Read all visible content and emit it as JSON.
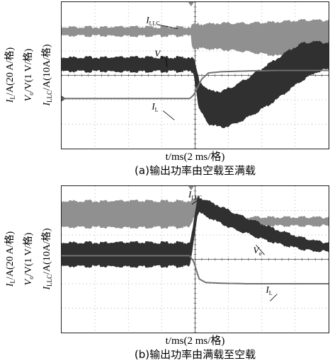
{
  "chart_data": [
    {
      "type": "line",
      "title": "",
      "caption": "(a)输出功率由空载至满载",
      "xlabel": "t/ms(2 ms/格)",
      "ylabel_lines": [
        "I_L/A(20 A/格)",
        "V_o/V(1 V/格)",
        "I_LLC/A(10A/格)"
      ],
      "x_divisions": 8,
      "y_divisions": 6,
      "xlim": [
        0,
        20
      ],
      "event_time_ms": 9.7,
      "series": [
        {
          "name": "I_LLC",
          "label_main": "I",
          "label_sub": "LLC",
          "color": "#909090",
          "x": [
            0,
            9.7,
            9.8,
            12,
            14,
            16,
            18,
            20
          ],
          "center": [
            1.2,
            1.2,
            1.4,
            1.4,
            1.45,
            1.5,
            1.5,
            1.5
          ],
          "band": [
            0.28,
            0.28,
            0.9,
            1.0,
            1.1,
            1.3,
            1.45,
            1.45
          ]
        },
        {
          "name": "V_o",
          "label_main": "V",
          "label_sub": "o",
          "color": "#303030",
          "x": [
            0,
            9.6,
            9.9,
            10.3,
            11,
            12,
            13,
            14,
            15,
            16,
            17,
            18,
            19,
            20
          ],
          "center": [
            2.55,
            2.55,
            2.6,
            3.8,
            4.3,
            4.4,
            4.2,
            3.9,
            3.55,
            3.2,
            2.8,
            2.45,
            2.25,
            2.2
          ],
          "band": [
            0.5,
            0.5,
            0.5,
            1.1,
            1.3,
            1.4,
            1.5,
            1.55,
            1.6,
            1.6,
            1.55,
            1.45,
            1.2,
            1.0
          ]
        },
        {
          "name": "I_L",
          "label_main": "I",
          "label_sub": "L",
          "color": "#707070",
          "x": [
            0,
            9.6,
            9.9,
            10.5,
            11,
            12,
            14,
            16,
            18,
            20
          ],
          "center": [
            3.95,
            3.95,
            3.8,
            3.15,
            2.9,
            2.85,
            2.82,
            2.8,
            2.8,
            2.8
          ],
          "band": [
            0.05,
            0.05,
            0.05,
            0.05,
            0.05,
            0.05,
            0.05,
            0.05,
            0.05,
            0.05
          ]
        }
      ]
    },
    {
      "type": "line",
      "title": "",
      "caption": "(b)输出功率由满载至空载",
      "xlabel": "t/ms(2 ms/格)",
      "ylabel_lines": [
        "I_L/A(20 A/格)",
        "V_o/V(1 V/格)",
        "I_LLC/A(10A/格)"
      ],
      "x_divisions": 8,
      "y_divisions": 6,
      "xlim": [
        0,
        20
      ],
      "event_time_ms": 9.7,
      "series": [
        {
          "name": "I_LLC",
          "label_main": "I",
          "label_sub": "LLC",
          "color": "#909090",
          "x": [
            0,
            9.6,
            9.9,
            10.3,
            11,
            12,
            13,
            20
          ],
          "center": [
            1.15,
            1.15,
            0.9,
            0.75,
            1.0,
            1.3,
            1.45,
            1.45
          ],
          "band": [
            1.0,
            1.0,
            0.6,
            0.6,
            0.4,
            0.3,
            0.28,
            0.28
          ]
        },
        {
          "name": "V_o",
          "label_main": "V",
          "label_sub": "o",
          "color": "#303030",
          "x": [
            0,
            9.6,
            9.8,
            10.2,
            11,
            12,
            13,
            14,
            15,
            16,
            17,
            18,
            19,
            20
          ],
          "center": [
            2.8,
            2.8,
            2.2,
            0.75,
            0.95,
            1.2,
            1.45,
            1.65,
            1.85,
            2.05,
            2.2,
            2.35,
            2.45,
            2.5
          ],
          "band": [
            0.9,
            0.9,
            0.6,
            0.55,
            0.6,
            0.6,
            0.6,
            0.55,
            0.55,
            0.5,
            0.45,
            0.4,
            0.35,
            0.3
          ]
        },
        {
          "name": "I_L",
          "label_main": "I",
          "label_sub": "L",
          "color": "#707070",
          "x": [
            0,
            9.6,
            9.9,
            10.3,
            10.8,
            12,
            14,
            16,
            18,
            20
          ],
          "center": [
            2.85,
            2.85,
            3.1,
            3.8,
            3.95,
            3.98,
            4.0,
            4.0,
            4.0,
            4.0
          ],
          "band": [
            0.05,
            0.05,
            0.05,
            0.05,
            0.05,
            0.05,
            0.05,
            0.05,
            0.05,
            0.05
          ]
        }
      ]
    }
  ]
}
